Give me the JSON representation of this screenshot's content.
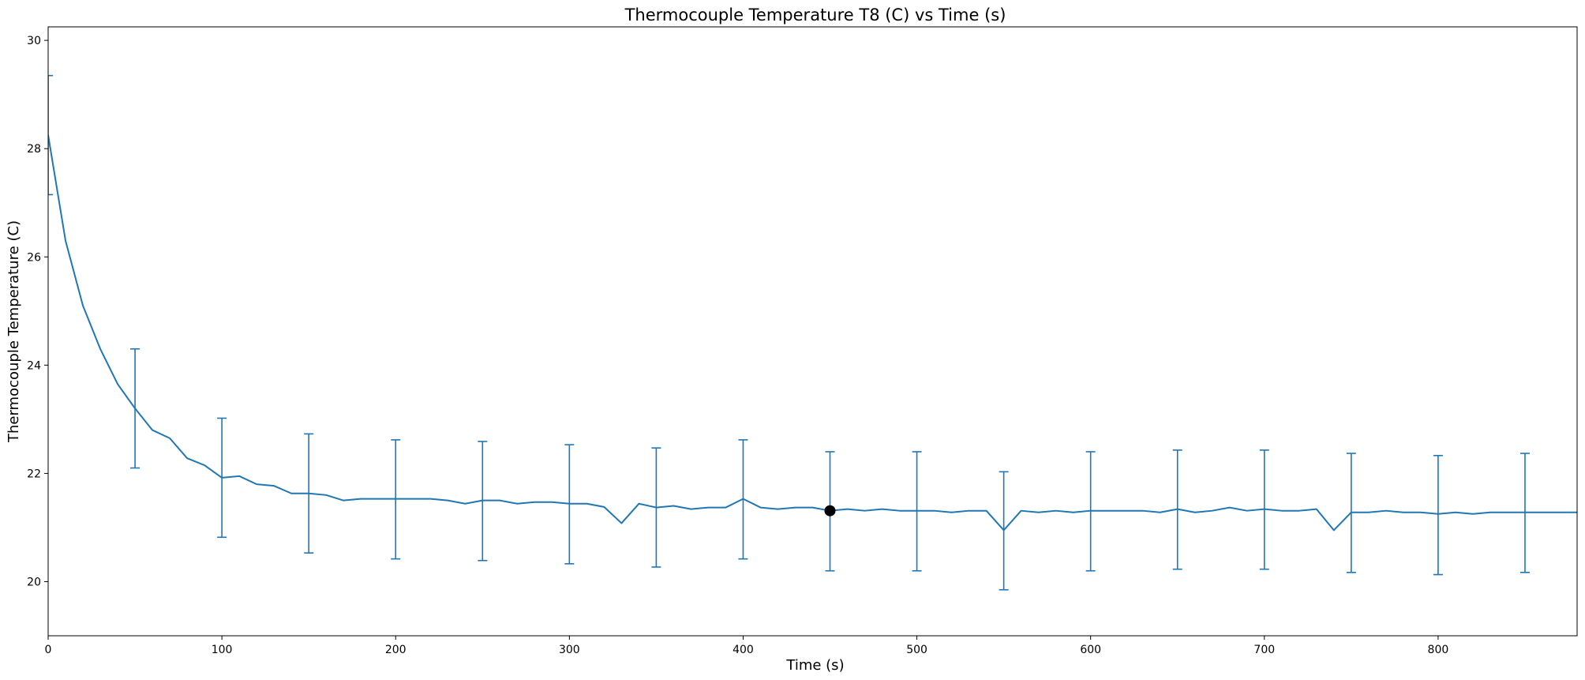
{
  "chart_data": {
    "type": "line",
    "title": "Thermocouple Temperature T8 (C) vs Time (s)",
    "xlabel": "Time (s)",
    "ylabel": "Thermocouple Temperature (C)",
    "xlim": [
      0,
      880
    ],
    "ylim": [
      19,
      30.25
    ],
    "xticks": [
      0,
      100,
      200,
      300,
      400,
      500,
      600,
      700,
      800
    ],
    "yticks": [
      20,
      22,
      24,
      26,
      28,
      30
    ],
    "grid": false,
    "line_color": "#1f77b4",
    "marker_color": "#000000",
    "series": [
      {
        "x": [
          0,
          10,
          20,
          30,
          40,
          50,
          60,
          70,
          80,
          90,
          100,
          110,
          120,
          130,
          140,
          150,
          160,
          170,
          180,
          190,
          200,
          210,
          220,
          230,
          240,
          250,
          260,
          270,
          280,
          290,
          300,
          310,
          320,
          330,
          340,
          350,
          360,
          370,
          380,
          390,
          400,
          410,
          420,
          430,
          440,
          450,
          460,
          470,
          480,
          490,
          500,
          510,
          520,
          530,
          540,
          550,
          560,
          570,
          580,
          590,
          600,
          610,
          620,
          630,
          640,
          650,
          660,
          670,
          680,
          690,
          700,
          710,
          720,
          730,
          740,
          750,
          760,
          770,
          780,
          790,
          800,
          810,
          820,
          830,
          840,
          850,
          860,
          870,
          880
        ],
        "y": [
          28.25,
          26.3,
          25.1,
          24.3,
          23.65,
          23.2,
          22.8,
          22.65,
          22.28,
          22.15,
          21.92,
          21.95,
          21.8,
          21.77,
          21.63,
          21.63,
          21.6,
          21.5,
          21.53,
          21.53,
          21.53,
          21.53,
          21.53,
          21.5,
          21.44,
          21.5,
          21.5,
          21.44,
          21.47,
          21.47,
          21.44,
          21.44,
          21.38,
          21.08,
          21.44,
          21.37,
          21.4,
          21.34,
          21.37,
          21.37,
          21.53,
          21.37,
          21.34,
          21.37,
          21.37,
          21.31,
          21.34,
          21.31,
          21.34,
          21.31,
          21.31,
          21.31,
          21.28,
          21.31,
          21.31,
          20.95,
          21.31,
          21.28,
          21.31,
          21.28,
          21.31,
          21.31,
          21.31,
          21.31,
          21.28,
          21.34,
          21.28,
          21.31,
          21.37,
          21.31,
          21.34,
          21.31,
          21.31,
          21.34,
          20.95,
          21.28,
          21.28,
          21.31,
          21.28,
          21.28,
          21.25,
          21.28,
          21.25,
          21.28,
          21.28,
          21.28,
          21.28,
          21.28,
          21.28
        ]
      }
    ],
    "error_bars": [
      {
        "x": 0,
        "lower": 27.15,
        "upper": 29.35
      },
      {
        "x": 50,
        "lower": 22.1,
        "upper": 24.3
      },
      {
        "x": 100,
        "lower": 20.82,
        "upper": 23.02
      },
      {
        "x": 150,
        "lower": 20.53,
        "upper": 22.73
      },
      {
        "x": 200,
        "lower": 20.42,
        "upper": 22.62
      },
      {
        "x": 250,
        "lower": 20.39,
        "upper": 22.59
      },
      {
        "x": 300,
        "lower": 20.33,
        "upper": 22.53
      },
      {
        "x": 350,
        "lower": 20.27,
        "upper": 22.47
      },
      {
        "x": 400,
        "lower": 20.42,
        "upper": 22.62
      },
      {
        "x": 450,
        "lower": 20.2,
        "upper": 22.4
      },
      {
        "x": 500,
        "lower": 20.2,
        "upper": 22.4
      },
      {
        "x": 550,
        "lower": 19.85,
        "upper": 22.03
      },
      {
        "x": 600,
        "lower": 20.2,
        "upper": 22.4
      },
      {
        "x": 650,
        "lower": 20.23,
        "upper": 22.43
      },
      {
        "x": 700,
        "lower": 20.23,
        "upper": 22.43
      },
      {
        "x": 750,
        "lower": 20.17,
        "upper": 22.37
      },
      {
        "x": 800,
        "lower": 20.13,
        "upper": 22.33
      },
      {
        "x": 850,
        "lower": 20.17,
        "upper": 22.37
      }
    ],
    "highlight_point": {
      "x": 450,
      "y": 21.31
    }
  }
}
